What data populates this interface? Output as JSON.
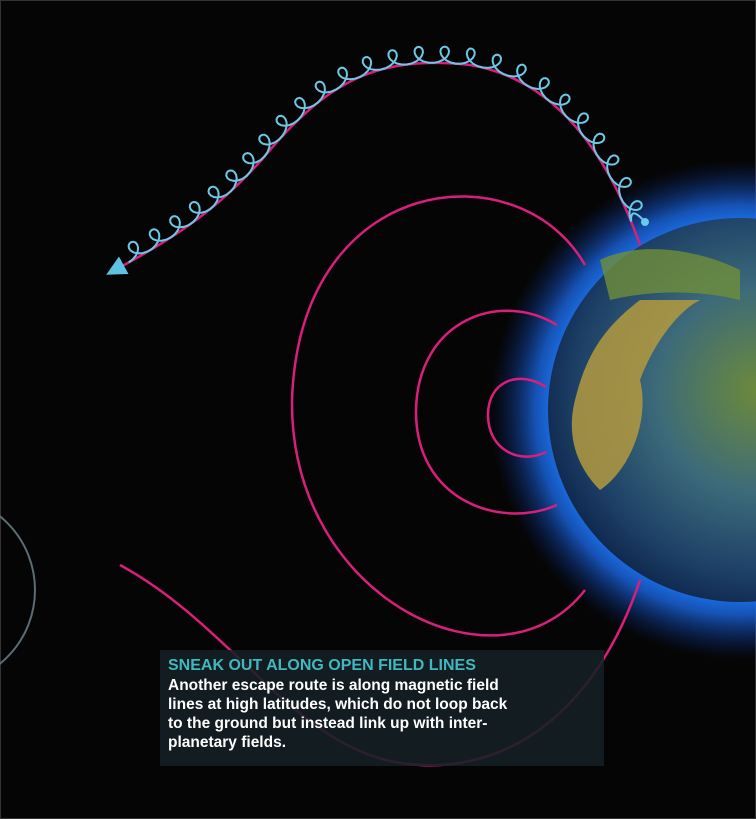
{
  "caption": {
    "heading": "SNEAK OUT ALONG OPEN FIELD LINES",
    "lines": [
      "Another escape route is along magnetic field",
      "lines at high latitudes, which do not loop back",
      "to the ground but instead link up with inter-",
      "planetary fields."
    ]
  }
}
